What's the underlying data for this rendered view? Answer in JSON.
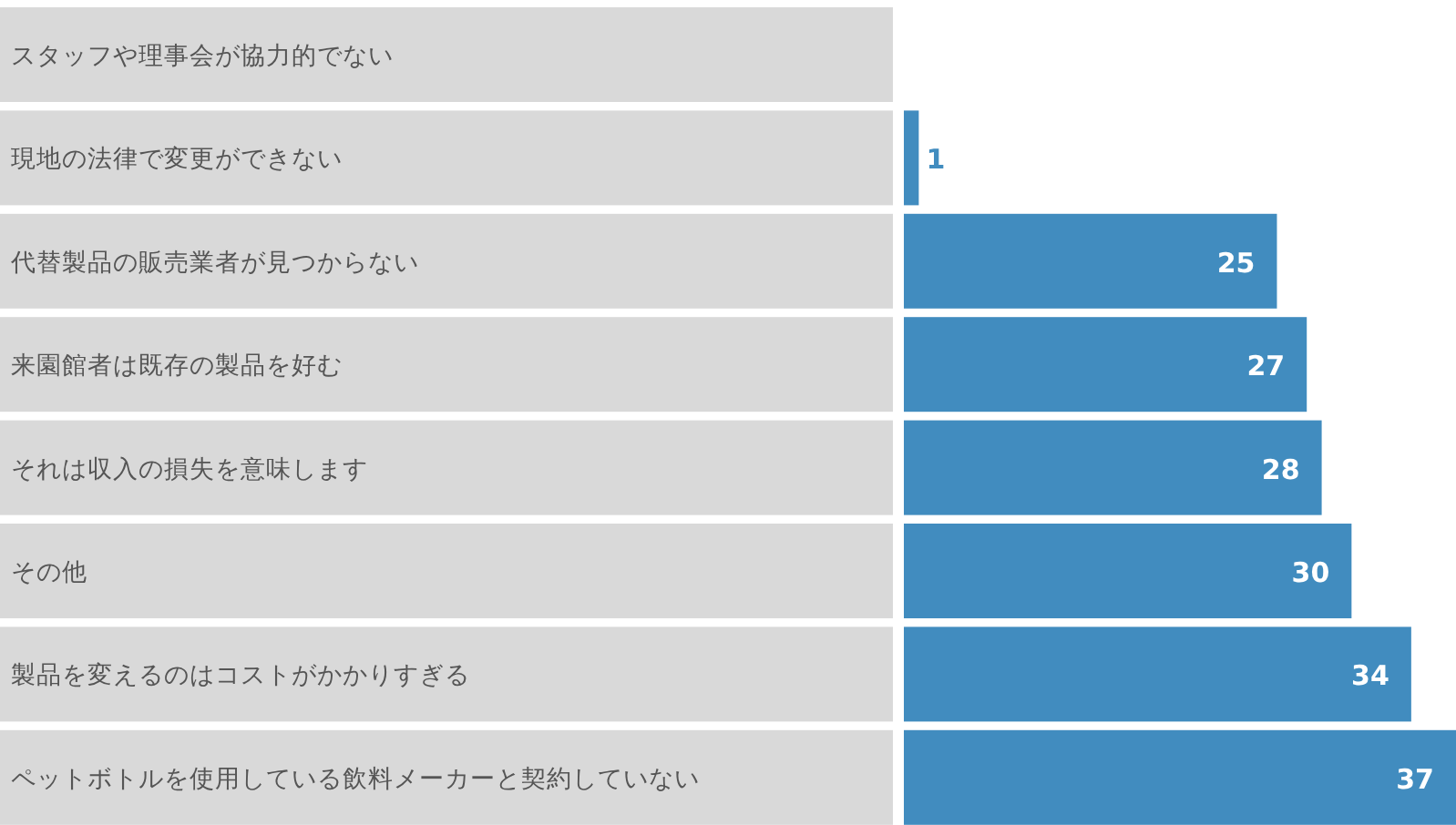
{
  "chart_data": {
    "type": "bar",
    "orientation": "horizontal",
    "data_labels": true,
    "categories": [
      "スタッフや理事会が協力的でない",
      "現地の法律で変更ができない",
      "代替製品の販売業者が見つからない",
      "来園館者は既存の製品を好む",
      "それは収入の損失を意味します",
      "その他",
      "製品を変えるのはコストがかかりすぎる",
      "ペットボトルを使用している飲料メーカーと契約していない"
    ],
    "values": [
      null,
      1,
      25,
      27,
      28,
      30,
      34,
      37
    ],
    "color": "#418cbf"
  }
}
